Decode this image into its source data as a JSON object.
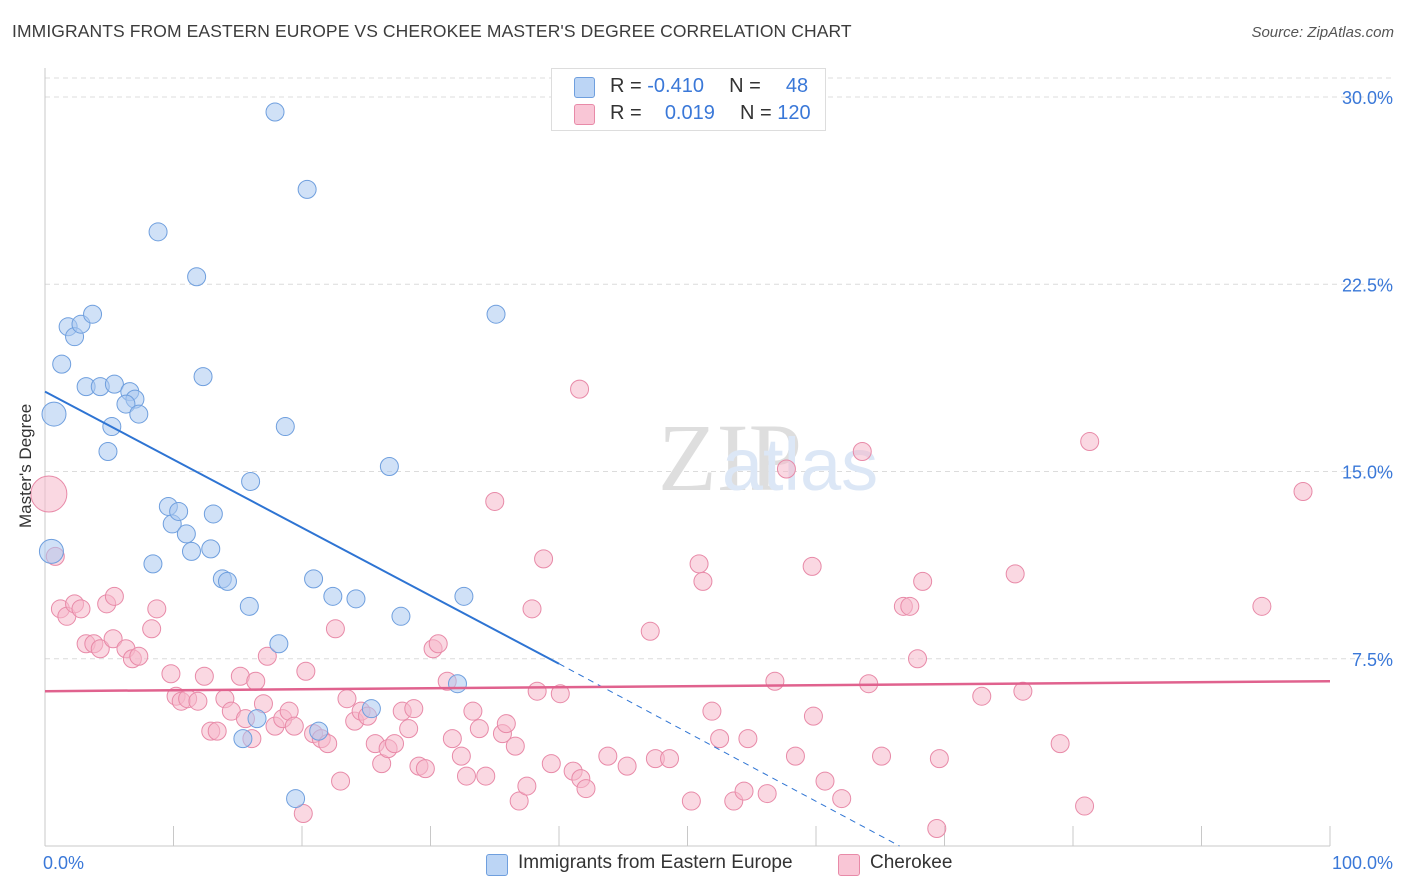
{
  "header": {
    "title": "IMMIGRANTS FROM EASTERN EUROPE VS CHEROKEE MASTER'S DEGREE CORRELATION CHART",
    "source": "Source: ZipAtlas.com"
  },
  "watermark": {
    "zip": "ZIP",
    "atlas": "atlas"
  },
  "legend_top": {
    "rows": [
      {
        "r_label": "R =",
        "r_value": "-0.410",
        "n_label": "N =",
        "n_value": "48"
      },
      {
        "r_label": "R =",
        "r_value": "0.019",
        "n_label": "N =",
        "n_value": "120"
      }
    ]
  },
  "legend_bottom": {
    "items": [
      {
        "label": "Immigrants from Eastern Europe"
      },
      {
        "label": "Cherokee"
      }
    ]
  },
  "colors": {
    "blue_fill": "#a9c8f0",
    "blue_stroke": "#6f9fde",
    "blue_line": "#2e74d3",
    "pink_fill": "#f6b8cb",
    "pink_stroke": "#e88aa8",
    "pink_line": "#e0628e",
    "axis_label": "#3a78d8",
    "grid": "#dcdcdc"
  },
  "chart_data": {
    "type": "scatter",
    "title": "IMMIGRANTS FROM EASTERN EUROPE VS CHEROKEE MASTER'S DEGREE CORRELATION CHART",
    "xlabel": "",
    "ylabel": "Master's Degree",
    "xlim": [
      0,
      100
    ],
    "ylim": [
      0,
      30
    ],
    "x_tick_labels": [
      "0.0%",
      "100.0%"
    ],
    "y_ticks": [
      7.5,
      15.0,
      22.5,
      30.0
    ],
    "y_tick_labels": [
      "7.5%",
      "15.0%",
      "22.5%",
      "30.0%"
    ],
    "series": [
      {
        "name": "Immigrants from Eastern Europe",
        "r": -0.41,
        "n": 48,
        "trend": {
          "x0": 0,
          "y0": 18.2,
          "x1": 40,
          "y1": 7.3,
          "dash_x1": 66.5,
          "dash_y1": 0
        },
        "points": [
          [
            0.5,
            11.8
          ],
          [
            0.7,
            17.3
          ],
          [
            1.3,
            19.3
          ],
          [
            1.8,
            20.8
          ],
          [
            2.3,
            20.4
          ],
          [
            2.8,
            20.9
          ],
          [
            3.7,
            21.3
          ],
          [
            3.2,
            18.4
          ],
          [
            4.3,
            18.4
          ],
          [
            5.4,
            18.5
          ],
          [
            6.6,
            18.2
          ],
          [
            7.0,
            17.9
          ],
          [
            6.3,
            17.7
          ],
          [
            7.3,
            17.3
          ],
          [
            5.2,
            16.8
          ],
          [
            4.9,
            15.8
          ],
          [
            8.8,
            24.6
          ],
          [
            11.8,
            22.8
          ],
          [
            12.3,
            18.8
          ],
          [
            17.9,
            29.4
          ],
          [
            20.4,
            26.3
          ],
          [
            18.7,
            16.8
          ],
          [
            16.0,
            14.6
          ],
          [
            26.8,
            15.2
          ],
          [
            35.1,
            21.3
          ],
          [
            9.6,
            13.6
          ],
          [
            9.9,
            12.9
          ],
          [
            10.4,
            13.4
          ],
          [
            11.0,
            12.5
          ],
          [
            13.1,
            13.3
          ],
          [
            11.4,
            11.8
          ],
          [
            12.9,
            11.9
          ],
          [
            8.4,
            11.3
          ],
          [
            13.8,
            10.7
          ],
          [
            14.2,
            10.6
          ],
          [
            15.9,
            9.6
          ],
          [
            20.9,
            10.7
          ],
          [
            22.4,
            10.0
          ],
          [
            24.2,
            9.9
          ],
          [
            27.7,
            9.2
          ],
          [
            32.6,
            10.0
          ],
          [
            18.2,
            8.1
          ],
          [
            32.1,
            6.5
          ],
          [
            16.5,
            5.1
          ],
          [
            15.4,
            4.3
          ],
          [
            21.3,
            4.6
          ],
          [
            25.4,
            5.5
          ],
          [
            19.5,
            1.9
          ]
        ]
      },
      {
        "name": "Cherokee",
        "r": 0.019,
        "n": 120,
        "trend": {
          "x0": 0,
          "y0": 6.2,
          "x1": 100,
          "y1": 6.6
        },
        "points": [
          [
            0.3,
            14.1
          ],
          [
            0.8,
            11.6
          ],
          [
            1.2,
            9.5
          ],
          [
            1.7,
            9.2
          ],
          [
            2.3,
            9.7
          ],
          [
            2.8,
            9.5
          ],
          [
            3.2,
            8.1
          ],
          [
            3.8,
            8.1
          ],
          [
            4.3,
            7.9
          ],
          [
            4.8,
            9.7
          ],
          [
            5.4,
            10.0
          ],
          [
            5.3,
            8.3
          ],
          [
            6.3,
            7.9
          ],
          [
            6.8,
            7.5
          ],
          [
            7.3,
            7.6
          ],
          [
            8.3,
            8.7
          ],
          [
            8.7,
            9.5
          ],
          [
            9.8,
            6.9
          ],
          [
            10.2,
            6.0
          ],
          [
            10.6,
            5.8
          ],
          [
            11.1,
            5.9
          ],
          [
            11.9,
            5.8
          ],
          [
            12.4,
            6.8
          ],
          [
            12.9,
            4.6
          ],
          [
            13.4,
            4.6
          ],
          [
            14.0,
            5.9
          ],
          [
            14.5,
            5.4
          ],
          [
            15.2,
            6.8
          ],
          [
            15.6,
            5.1
          ],
          [
            16.1,
            4.3
          ],
          [
            16.4,
            6.6
          ],
          [
            17.0,
            5.7
          ],
          [
            17.3,
            7.6
          ],
          [
            17.9,
            4.8
          ],
          [
            18.5,
            5.1
          ],
          [
            19.0,
            5.4
          ],
          [
            19.4,
            4.8
          ],
          [
            20.1,
            1.3
          ],
          [
            20.3,
            7.0
          ],
          [
            20.9,
            4.5
          ],
          [
            21.5,
            4.3
          ],
          [
            22.0,
            4.1
          ],
          [
            22.6,
            8.7
          ],
          [
            23.0,
            2.6
          ],
          [
            23.5,
            5.9
          ],
          [
            24.1,
            5.0
          ],
          [
            24.6,
            5.4
          ],
          [
            25.1,
            5.2
          ],
          [
            25.7,
            4.1
          ],
          [
            26.2,
            3.3
          ],
          [
            26.7,
            3.9
          ],
          [
            27.2,
            4.1
          ],
          [
            27.8,
            5.4
          ],
          [
            28.3,
            4.7
          ],
          [
            28.7,
            5.5
          ],
          [
            29.1,
            3.2
          ],
          [
            29.6,
            3.1
          ],
          [
            30.2,
            7.9
          ],
          [
            30.6,
            8.1
          ],
          [
            31.3,
            6.6
          ],
          [
            31.7,
            4.3
          ],
          [
            32.4,
            3.6
          ],
          [
            32.8,
            2.8
          ],
          [
            33.3,
            5.4
          ],
          [
            33.8,
            4.7
          ],
          [
            34.3,
            2.8
          ],
          [
            35.0,
            13.8
          ],
          [
            35.6,
            4.5
          ],
          [
            35.9,
            4.9
          ],
          [
            36.6,
            4.0
          ],
          [
            36.9,
            1.8
          ],
          [
            37.5,
            2.4
          ],
          [
            37.9,
            9.5
          ],
          [
            38.3,
            6.2
          ],
          [
            38.8,
            11.5
          ],
          [
            39.4,
            3.3
          ],
          [
            40.1,
            6.1
          ],
          [
            41.1,
            3.0
          ],
          [
            41.6,
            18.3
          ],
          [
            41.7,
            2.7
          ],
          [
            42.1,
            2.3
          ],
          [
            43.8,
            3.6
          ],
          [
            45.3,
            3.2
          ],
          [
            47.1,
            8.6
          ],
          [
            47.5,
            3.5
          ],
          [
            48.6,
            3.5
          ],
          [
            50.3,
            1.8
          ],
          [
            50.9,
            11.3
          ],
          [
            51.2,
            10.6
          ],
          [
            51.9,
            5.4
          ],
          [
            52.5,
            4.3
          ],
          [
            53.6,
            1.8
          ],
          [
            54.4,
            2.2
          ],
          [
            54.7,
            4.3
          ],
          [
            56.2,
            2.1
          ],
          [
            56.8,
            6.6
          ],
          [
            57.7,
            15.1
          ],
          [
            58.4,
            3.6
          ],
          [
            59.7,
            11.2
          ],
          [
            59.8,
            5.2
          ],
          [
            60.7,
            2.6
          ],
          [
            62.0,
            1.9
          ],
          [
            63.6,
            15.8
          ],
          [
            64.1,
            6.5
          ],
          [
            65.1,
            3.6
          ],
          [
            66.8,
            9.6
          ],
          [
            67.3,
            9.6
          ],
          [
            67.9,
            7.5
          ],
          [
            68.3,
            10.6
          ],
          [
            69.4,
            0.7
          ],
          [
            69.6,
            3.5
          ],
          [
            72.9,
            6.0
          ],
          [
            75.5,
            10.9
          ],
          [
            76.1,
            6.2
          ],
          [
            79.0,
            4.1
          ],
          [
            80.9,
            1.6
          ],
          [
            81.3,
            16.2
          ],
          [
            94.7,
            9.6
          ],
          [
            97.9,
            14.2
          ]
        ]
      }
    ]
  }
}
